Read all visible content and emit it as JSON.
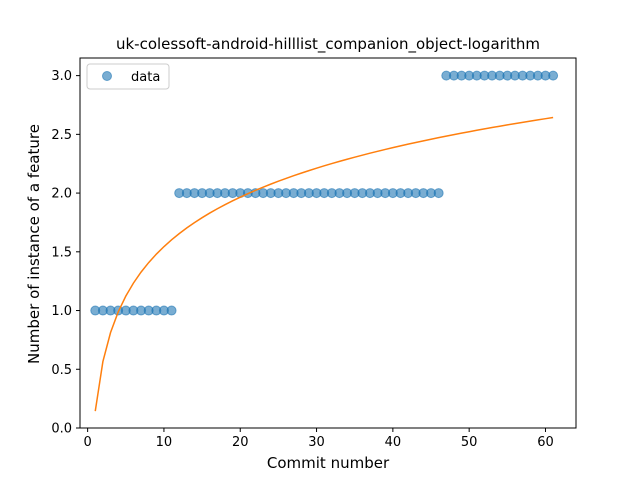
{
  "chart_data": {
    "type": "scatter",
    "title": "uk-colessoft-android-hilllist_companion_object-logarithm",
    "xlabel": "Commit number",
    "ylabel": "Number of instance of a feature",
    "xlim": [
      -1.0,
      64.0
    ],
    "ylim": [
      0.0,
      3.15
    ],
    "xticks": [
      0,
      10,
      20,
      30,
      40,
      50,
      60
    ],
    "yticks": [
      0.0,
      0.5,
      1.0,
      1.5,
      2.0,
      2.5,
      3.0
    ],
    "xtick_labels": [
      "0",
      "10",
      "20",
      "30",
      "40",
      "50",
      "60"
    ],
    "ytick_labels": [
      "0.0",
      "0.5",
      "1.0",
      "1.5",
      "2.0",
      "2.5",
      "3.0"
    ],
    "legend": {
      "position": "top-left",
      "entries": [
        "data"
      ]
    },
    "series": [
      {
        "name": "data",
        "kind": "scatter",
        "color": "#1f77b4",
        "x": [
          1,
          2,
          3,
          4,
          5,
          6,
          7,
          8,
          9,
          10,
          11,
          12,
          13,
          14,
          15,
          16,
          17,
          18,
          19,
          20,
          21,
          22,
          23,
          24,
          25,
          26,
          27,
          28,
          29,
          30,
          31,
          32,
          33,
          34,
          35,
          36,
          37,
          38,
          39,
          40,
          41,
          42,
          43,
          44,
          45,
          46,
          47,
          48,
          49,
          50,
          51,
          52,
          53,
          54,
          55,
          56,
          57,
          58,
          59,
          60,
          61
        ],
        "y": [
          1,
          1,
          1,
          1,
          1,
          1,
          1,
          1,
          1,
          1,
          1,
          2,
          2,
          2,
          2,
          2,
          2,
          2,
          2,
          2,
          2,
          2,
          2,
          2,
          2,
          2,
          2,
          2,
          2,
          2,
          2,
          2,
          2,
          2,
          2,
          2,
          2,
          2,
          2,
          2,
          2,
          2,
          2,
          2,
          2,
          2,
          3,
          3,
          3,
          3,
          3,
          3,
          3,
          3,
          3,
          3,
          3,
          3,
          3,
          3,
          3
        ]
      },
      {
        "name": "logarithmic fit",
        "kind": "line",
        "color": "#ff7f0e",
        "function": "a + b*ln(x)",
        "a": 0.144,
        "b": 0.608,
        "x_range": [
          1,
          61
        ]
      }
    ]
  }
}
